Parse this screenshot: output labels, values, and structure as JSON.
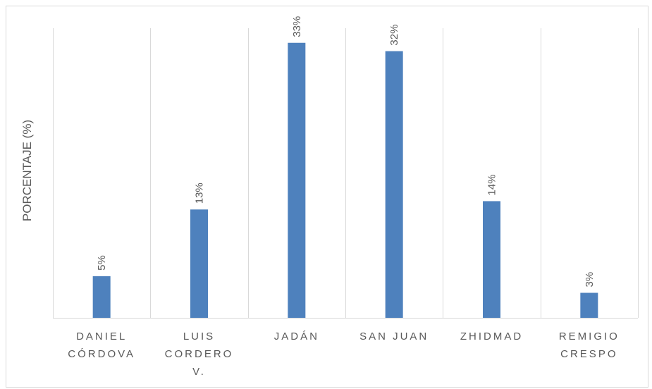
{
  "chart_data": {
    "type": "bar",
    "title": "",
    "xlabel": "",
    "ylabel": "PORCENTAJE (%)",
    "ylim": [
      0,
      35
    ],
    "grid": "vertical category separators",
    "legend": "none",
    "bar_color": "#4e81bd",
    "categories": [
      [
        "DANIEL",
        "CÓRDOVA"
      ],
      [
        "LUIS",
        "CORDERO",
        "V."
      ],
      [
        "JADÁN"
      ],
      [
        "SAN JUAN"
      ],
      [
        "ZHIDMAD"
      ],
      [
        "REMIGIO",
        "CRESPO"
      ]
    ],
    "values": [
      5,
      13,
      33,
      32,
      14,
      3
    ],
    "data_labels": [
      "5%",
      "13%",
      "33%",
      "32%",
      "14%",
      "3%"
    ]
  }
}
